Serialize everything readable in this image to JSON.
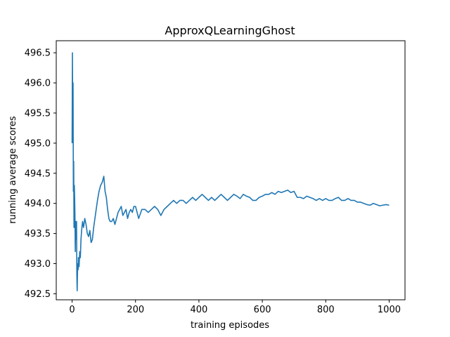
{
  "chart_data": {
    "type": "line",
    "title": "ApproxQLearningGhost",
    "xlabel": "training episodes",
    "ylabel": "running average scores",
    "xlim": [
      -50,
      1050
    ],
    "ylim": [
      492.4,
      496.7
    ],
    "xticks": [
      0,
      200,
      400,
      600,
      800,
      1000
    ],
    "yticks": [
      492.5,
      493.0,
      493.5,
      494.0,
      494.5,
      495.0,
      495.5,
      496.0,
      496.5
    ],
    "xtick_labels": [
      "0",
      "200",
      "400",
      "600",
      "800",
      "1000"
    ],
    "ytick_labels": [
      "492.5",
      "493.0",
      "493.5",
      "494.0",
      "494.5",
      "495.0",
      "495.5",
      "496.0",
      "496.5"
    ],
    "grid": false,
    "series": [
      {
        "name": "running average",
        "color": "#1f77b4",
        "x": [
          0,
          1,
          2,
          3,
          4,
          5,
          6,
          7,
          8,
          9,
          10,
          11,
          12,
          13,
          14,
          15,
          16,
          17,
          18,
          19,
          20,
          22,
          24,
          26,
          28,
          30,
          33,
          36,
          40,
          44,
          48,
          52,
          56,
          60,
          64,
          68,
          72,
          76,
          80,
          85,
          90,
          95,
          100,
          104,
          108,
          112,
          116,
          120,
          125,
          130,
          135,
          140,
          145,
          150,
          155,
          160,
          165,
          170,
          175,
          180,
          185,
          190,
          195,
          200,
          210,
          220,
          230,
          240,
          250,
          260,
          270,
          280,
          290,
          300,
          310,
          320,
          330,
          340,
          350,
          360,
          370,
          380,
          390,
          400,
          410,
          420,
          430,
          440,
          450,
          460,
          470,
          480,
          490,
          500,
          510,
          520,
          530,
          540,
          550,
          560,
          570,
          580,
          590,
          600,
          610,
          620,
          630,
          640,
          650,
          660,
          670,
          680,
          690,
          700,
          710,
          720,
          730,
          740,
          750,
          760,
          770,
          780,
          790,
          800,
          810,
          820,
          830,
          840,
          850,
          860,
          870,
          880,
          890,
          900,
          910,
          920,
          930,
          940,
          950,
          960,
          970,
          980,
          990,
          1000
        ],
        "y": [
          495.0,
          496.5,
          495.2,
          496.0,
          494.2,
          494.7,
          493.6,
          494.3,
          494.1,
          493.8,
          493.2,
          493.7,
          493.4,
          493.5,
          493.7,
          492.8,
          492.55,
          492.85,
          493.0,
          492.9,
          493.1,
          492.95,
          493.2,
          493.1,
          493.4,
          493.55,
          493.7,
          493.6,
          493.75,
          493.65,
          493.5,
          493.45,
          493.55,
          493.35,
          493.4,
          493.6,
          493.75,
          493.9,
          494.05,
          494.2,
          494.3,
          494.35,
          494.45,
          494.2,
          494.1,
          493.9,
          493.75,
          493.7,
          493.7,
          493.75,
          493.65,
          493.75,
          493.85,
          493.9,
          493.95,
          493.8,
          493.85,
          493.9,
          493.75,
          493.85,
          493.9,
          493.85,
          493.95,
          493.95,
          493.75,
          493.9,
          493.9,
          493.85,
          493.9,
          493.95,
          493.9,
          493.8,
          493.9,
          493.95,
          494.0,
          494.05,
          494.0,
          494.05,
          494.05,
          494.0,
          494.05,
          494.1,
          494.05,
          494.1,
          494.15,
          494.1,
          494.05,
          494.1,
          494.05,
          494.1,
          494.15,
          494.1,
          494.05,
          494.1,
          494.15,
          494.12,
          494.08,
          494.15,
          494.12,
          494.1,
          494.05,
          494.05,
          494.1,
          494.12,
          494.15,
          494.15,
          494.18,
          494.15,
          494.2,
          494.18,
          494.2,
          494.22,
          494.18,
          494.2,
          494.1,
          494.1,
          494.08,
          494.12,
          494.1,
          494.08,
          494.05,
          494.08,
          494.05,
          494.08,
          494.05,
          494.05,
          494.08,
          494.1,
          494.05,
          494.05,
          494.08,
          494.05,
          494.05,
          494.02,
          494.02,
          494.0,
          493.98,
          493.97,
          494.0,
          493.98,
          493.96,
          493.97,
          493.98,
          493.97
        ]
      }
    ]
  }
}
